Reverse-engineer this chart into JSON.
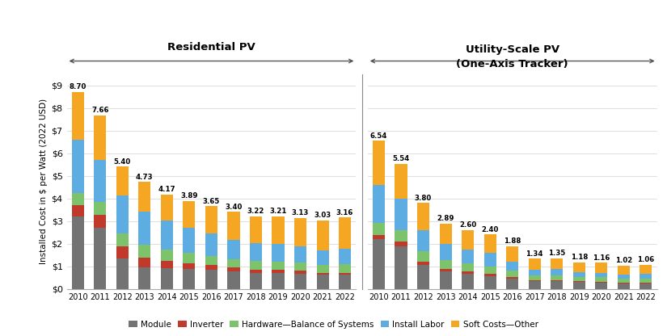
{
  "res_years": [
    "2010",
    "2011",
    "2012",
    "2013",
    "2014",
    "2015",
    "2016",
    "2017",
    "2018",
    "2019",
    "2020",
    "2021",
    "2022"
  ],
  "res_totals": [
    8.7,
    7.66,
    5.4,
    4.73,
    4.17,
    3.89,
    3.65,
    3.4,
    3.22,
    3.21,
    3.13,
    3.03,
    3.16
  ],
  "res_module": [
    3.2,
    2.72,
    1.35,
    0.97,
    0.93,
    0.88,
    0.85,
    0.78,
    0.72,
    0.72,
    0.68,
    0.62,
    0.62
  ],
  "res_inverter": [
    0.5,
    0.55,
    0.52,
    0.42,
    0.32,
    0.25,
    0.2,
    0.16,
    0.13,
    0.12,
    0.12,
    0.1,
    0.1
  ],
  "res_hardware": [
    0.52,
    0.58,
    0.58,
    0.56,
    0.5,
    0.45,
    0.4,
    0.38,
    0.38,
    0.38,
    0.38,
    0.35,
    0.38
  ],
  "res_labor": [
    2.38,
    1.85,
    1.68,
    1.48,
    1.28,
    1.12,
    1.02,
    0.85,
    0.78,
    0.78,
    0.72,
    0.65,
    0.68
  ],
  "res_soft": [
    2.1,
    1.96,
    1.27,
    1.3,
    1.14,
    1.19,
    1.18,
    1.23,
    1.21,
    1.21,
    1.23,
    1.31,
    1.38
  ],
  "util_years": [
    "2010",
    "2011",
    "2012",
    "2013",
    "2014",
    "2015",
    "2016",
    "2017",
    "2018",
    "2019",
    "2020",
    "2021",
    "2022"
  ],
  "util_totals": [
    6.54,
    5.54,
    3.8,
    2.89,
    2.6,
    2.4,
    1.88,
    1.34,
    1.35,
    1.18,
    1.16,
    1.02,
    1.06
  ],
  "util_module": [
    2.2,
    1.9,
    1.05,
    0.78,
    0.68,
    0.58,
    0.46,
    0.34,
    0.34,
    0.3,
    0.28,
    0.25,
    0.25
  ],
  "util_inverter": [
    0.18,
    0.18,
    0.14,
    0.1,
    0.09,
    0.08,
    0.07,
    0.05,
    0.05,
    0.04,
    0.04,
    0.04,
    0.04
  ],
  "util_hardware": [
    0.55,
    0.52,
    0.48,
    0.4,
    0.36,
    0.34,
    0.28,
    0.2,
    0.22,
    0.2,
    0.2,
    0.17,
    0.18
  ],
  "util_labor": [
    1.65,
    1.38,
    0.92,
    0.72,
    0.62,
    0.58,
    0.38,
    0.24,
    0.26,
    0.19,
    0.19,
    0.17,
    0.19
  ],
  "util_soft": [
    1.96,
    1.56,
    1.21,
    0.89,
    0.85,
    0.82,
    0.69,
    0.51,
    0.48,
    0.45,
    0.45,
    0.39,
    0.4
  ],
  "colors": {
    "module": "#737373",
    "inverter": "#c0392b",
    "hardware": "#7dc36b",
    "labor": "#5dade2",
    "soft": "#f5a623"
  },
  "legend_labels": [
    "Module",
    "Inverter",
    "Hardware—Balance of Systems",
    "Install Labor",
    "Soft Costs—Other"
  ],
  "ylabel": "Installed Cost in $ per Watt (2022 USD)",
  "ylim": [
    0,
    9.5
  ],
  "yticks": [
    0,
    1,
    2,
    3,
    4,
    5,
    6,
    7,
    8,
    9
  ],
  "ytick_labels": [
    "$0",
    "$1",
    "$2",
    "$3",
    "$4",
    "$5",
    "$6",
    "$7",
    "$8",
    "$9"
  ],
  "res_title": "Residential PV",
  "util_title": "Utility-Scale PV\n(One-Axis Tracker)",
  "background": "#ffffff"
}
